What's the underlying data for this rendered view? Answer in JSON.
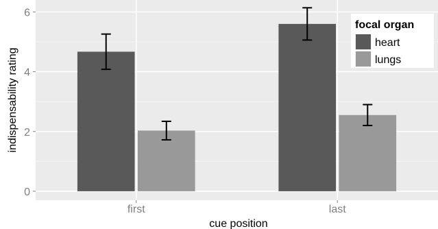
{
  "chart_data": {
    "type": "bar",
    "title": "",
    "xlabel": "cue position",
    "ylabel": "indispensability rating",
    "categories": [
      "first",
      "last"
    ],
    "ylim": [
      -0.3,
      6.4
    ],
    "yticks": [
      0,
      2,
      4,
      6
    ],
    "grid": true,
    "legend": {
      "title": "focal organ",
      "placement": "top-right"
    },
    "series": [
      {
        "name": "heart",
        "color": "#595959",
        "values": [
          4.67,
          5.6
        ],
        "error_low": [
          4.08,
          5.06
        ],
        "error_high": [
          5.26,
          6.14
        ]
      },
      {
        "name": "lungs",
        "color": "#999999",
        "values": [
          2.03,
          2.55
        ],
        "error_low": [
          1.72,
          2.2
        ],
        "error_high": [
          2.34,
          2.9
        ]
      }
    ]
  }
}
